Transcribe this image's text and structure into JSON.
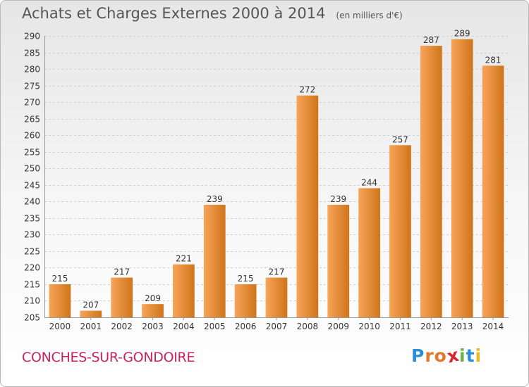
{
  "header": {
    "title": "Achats et Charges Externes 2000 à 2014",
    "unit": "(en milliers d'€)"
  },
  "footer": {
    "town": "CONCHES-SUR-GONDOIRE",
    "logo_letters": [
      {
        "char": "P",
        "color": "#2a8fd6"
      },
      {
        "char": "r",
        "color": "#e8762b"
      },
      {
        "char": "o",
        "color": "#e8762b"
      },
      {
        "char": "x",
        "color": "#d7262e"
      },
      {
        "char": "i",
        "color": "#6ab23f"
      },
      {
        "char": "t",
        "color": "#2a8fd6"
      },
      {
        "char": "i",
        "color": "#f2b51b"
      }
    ]
  },
  "colors": {
    "bar_light": "#f7a45a",
    "bar_dark": "#d07419",
    "grid": "#cfcfcf",
    "axis_text": "#333333",
    "title": "#555555",
    "town": "#c8235e"
  },
  "chart_data": {
    "type": "bar",
    "title": "Achats et Charges Externes 2000 à 2014",
    "subtitle": "(en milliers d'€)",
    "xlabel": "",
    "ylabel": "",
    "categories": [
      "2000",
      "2001",
      "2002",
      "2003",
      "2004",
      "2005",
      "2006",
      "2007",
      "2008",
      "2009",
      "2010",
      "2011",
      "2012",
      "2013",
      "2014"
    ],
    "values": [
      215,
      207,
      217,
      209,
      221,
      239,
      215,
      217,
      272,
      239,
      244,
      257,
      287,
      289,
      281
    ],
    "ylim": [
      205,
      290
    ],
    "yticks": [
      205,
      210,
      215,
      220,
      225,
      230,
      235,
      240,
      245,
      250,
      255,
      260,
      265,
      270,
      275,
      280,
      285,
      290
    ],
    "grid": true,
    "legend": "none"
  }
}
